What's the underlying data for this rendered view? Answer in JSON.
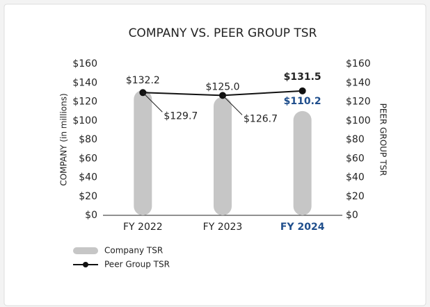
{
  "chart_data": {
    "type": "bar",
    "title": "COMPANY VS. PEER GROUP TSR",
    "y_label": "COMPANY (in millions)",
    "y2_label": "PEER GROUP TSR",
    "categories": [
      "FY 2022",
      "FY 2023",
      "FY 2024"
    ],
    "series": [
      {
        "name": "Company TSR",
        "type": "bar",
        "color": "#c6c6c6",
        "values": [
          132.2,
          125.0,
          110.2
        ],
        "value_labels": [
          "$132.2",
          "$125.0",
          "$110.2"
        ]
      },
      {
        "name": "Peer Group TSR",
        "type": "line",
        "axis": "y2",
        "color": "#111111",
        "values": [
          129.7,
          126.7,
          131.5
        ],
        "value_labels": [
          "$129.7",
          "$126.7",
          "$131.5"
        ]
      }
    ],
    "highlight_color": "#1f4e8c",
    "ylim": [
      0,
      160
    ],
    "yticks": [
      {
        "value": 0,
        "label": "$0"
      },
      {
        "value": 20,
        "label": "$20"
      },
      {
        "value": 40,
        "label": "$40"
      },
      {
        "value": 60,
        "label": "$60"
      },
      {
        "value": 80,
        "label": "$80"
      },
      {
        "value": 100,
        "label": "$100"
      },
      {
        "value": 120,
        "label": "$120"
      },
      {
        "value": 140,
        "label": "$140"
      },
      {
        "value": 160,
        "label": "$160"
      }
    ],
    "y2lim": [
      0,
      160
    ],
    "y2ticks": [
      {
        "value": 0,
        "label": "$0"
      },
      {
        "value": 20,
        "label": "$20"
      },
      {
        "value": 40,
        "label": "$40"
      },
      {
        "value": 60,
        "label": "$60"
      },
      {
        "value": 80,
        "label": "$80"
      },
      {
        "value": 100,
        "label": "$100"
      },
      {
        "value": 120,
        "label": "$120"
      },
      {
        "value": 140,
        "label": "$140"
      },
      {
        "value": 160,
        "label": "$160"
      }
    ],
    "legend": "bottom-left"
  }
}
